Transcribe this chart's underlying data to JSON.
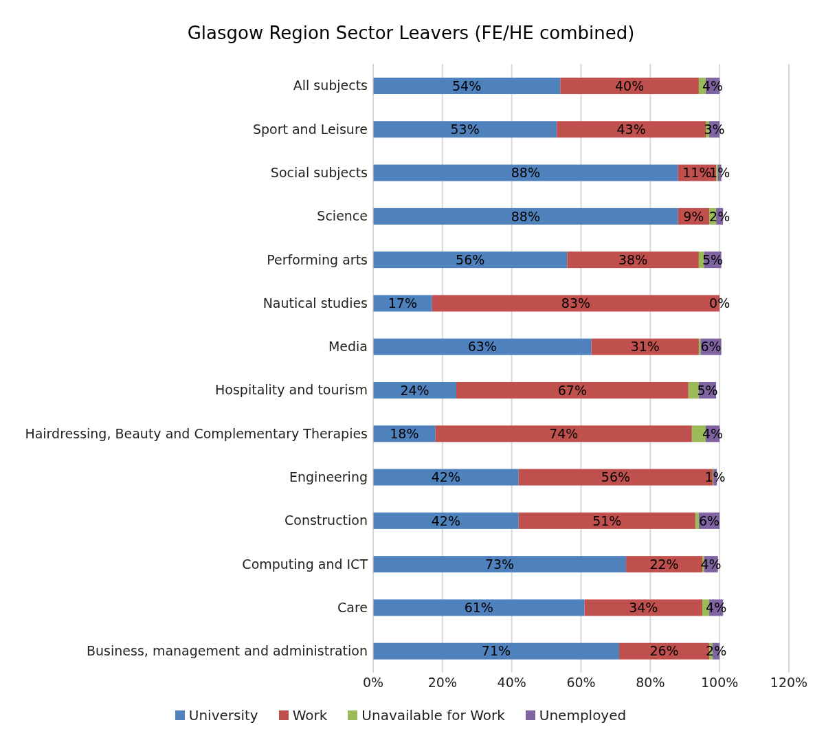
{
  "chart_data": {
    "type": "bar",
    "orientation": "horizontal",
    "stacked": true,
    "title": "Glasgow Region Sector Leavers (FE/HE combined)",
    "categories": [
      "All subjects",
      "Sport and Leisure",
      "Social subjects",
      "Science",
      "Performing arts",
      "Nautical studies",
      "Media",
      "Hospitality and tourism",
      "Hairdressing, Beauty and Complementary Therapies",
      "Engineering",
      "Construction",
      "Computing and ICT",
      "Care",
      "Business, management and administration"
    ],
    "series": [
      {
        "name": "University",
        "color": "#4f81bd",
        "values": [
          54,
          53,
          88,
          88,
          56,
          17,
          63,
          24,
          18,
          42,
          42,
          73,
          61,
          71
        ],
        "value_labels": [
          "54%",
          "53%",
          "88%",
          "88%",
          "56%",
          "17%",
          "63%",
          "24%",
          "18%",
          "42%",
          "42%",
          "73%",
          "61%",
          "71%"
        ]
      },
      {
        "name": "Work",
        "color": "#c0504d",
        "values": [
          40,
          43,
          11,
          9,
          38,
          83,
          31,
          67,
          74,
          56,
          51,
          22,
          34,
          26
        ],
        "value_labels": [
          "40%",
          "43%",
          "11%",
          "9%",
          "38%",
          "83%",
          "31%",
          "67%",
          "74%",
          "56%",
          "51%",
          "22%",
          "34%",
          "26%"
        ]
      },
      {
        "name": "Unavailable for Work",
        "color": "#9bbb59",
        "values": [
          2,
          1,
          0.5,
          2,
          1.5,
          0,
          0.5,
          3,
          4,
          0.2,
          1,
          0.5,
          2,
          1
        ]
      },
      {
        "name": "Unemployed",
        "color": "#8064a2",
        "values": [
          4,
          3,
          1,
          2,
          5,
          0,
          6,
          5,
          4,
          1,
          6,
          4,
          4,
          2
        ],
        "value_labels": [
          "4%",
          "3%",
          "1%",
          "2%",
          "5%",
          "0%",
          "6%",
          "5%",
          "4%",
          "1%",
          "6%",
          "4%",
          "4%",
          "2%"
        ]
      }
    ],
    "xlim": [
      0,
      120
    ],
    "xticks": [
      {
        "value": 0,
        "label": "0%"
      },
      {
        "value": 20,
        "label": "20%"
      },
      {
        "value": 40,
        "label": "40%"
      },
      {
        "value": 60,
        "label": "60%"
      },
      {
        "value": 80,
        "label": "80%"
      },
      {
        "value": 100,
        "label": "100%"
      },
      {
        "value": 120,
        "label": "120%"
      }
    ],
    "grid": "x",
    "legend": "bottom"
  }
}
